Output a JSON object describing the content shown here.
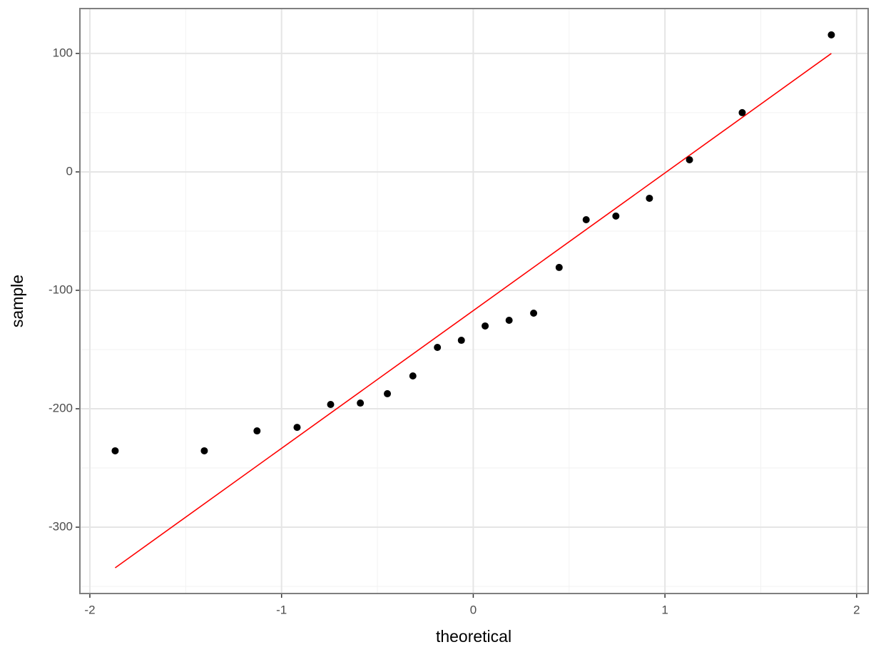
{
  "chart_data": {
    "type": "scatter",
    "x_label": "theoretical",
    "y_label": "sample",
    "points": {
      "color": "#000000",
      "x": [
        -1.868,
        -1.403,
        -1.128,
        -0.919,
        -0.744,
        -0.589,
        -0.448,
        -0.315,
        -0.187,
        -0.062,
        0.062,
        0.187,
        0.315,
        0.448,
        0.589,
        0.744,
        0.919,
        1.128,
        1.403,
        1.868
      ],
      "values": [
        -235.5,
        -235.5,
        -218.7,
        -215.7,
        -196.4,
        -195.2,
        -187.3,
        -172.3,
        -148.2,
        -142.2,
        -130.1,
        -125.3,
        -119.3,
        -80.7,
        -40.4,
        -37.3,
        -22.3,
        10.2,
        50.0,
        115.7
      ]
    },
    "line": {
      "color": "#ff0000",
      "x": [
        -1.868,
        1.868
      ],
      "values": [
        -334.3,
        100
      ]
    },
    "xlim": [
      -2.052,
      2.06
    ],
    "ylim": [
      -356,
      137.9
    ],
    "xticks": [
      -2,
      -1,
      0,
      1,
      2
    ],
    "yticks": [
      -300,
      -200,
      -100,
      0,
      100
    ],
    "minor_xticks": [
      -1.5,
      -0.5,
      0.5,
      1.5
    ],
    "minor_yticks": [
      -350,
      -250,
      -150,
      -50,
      50
    ],
    "grid": true
  }
}
